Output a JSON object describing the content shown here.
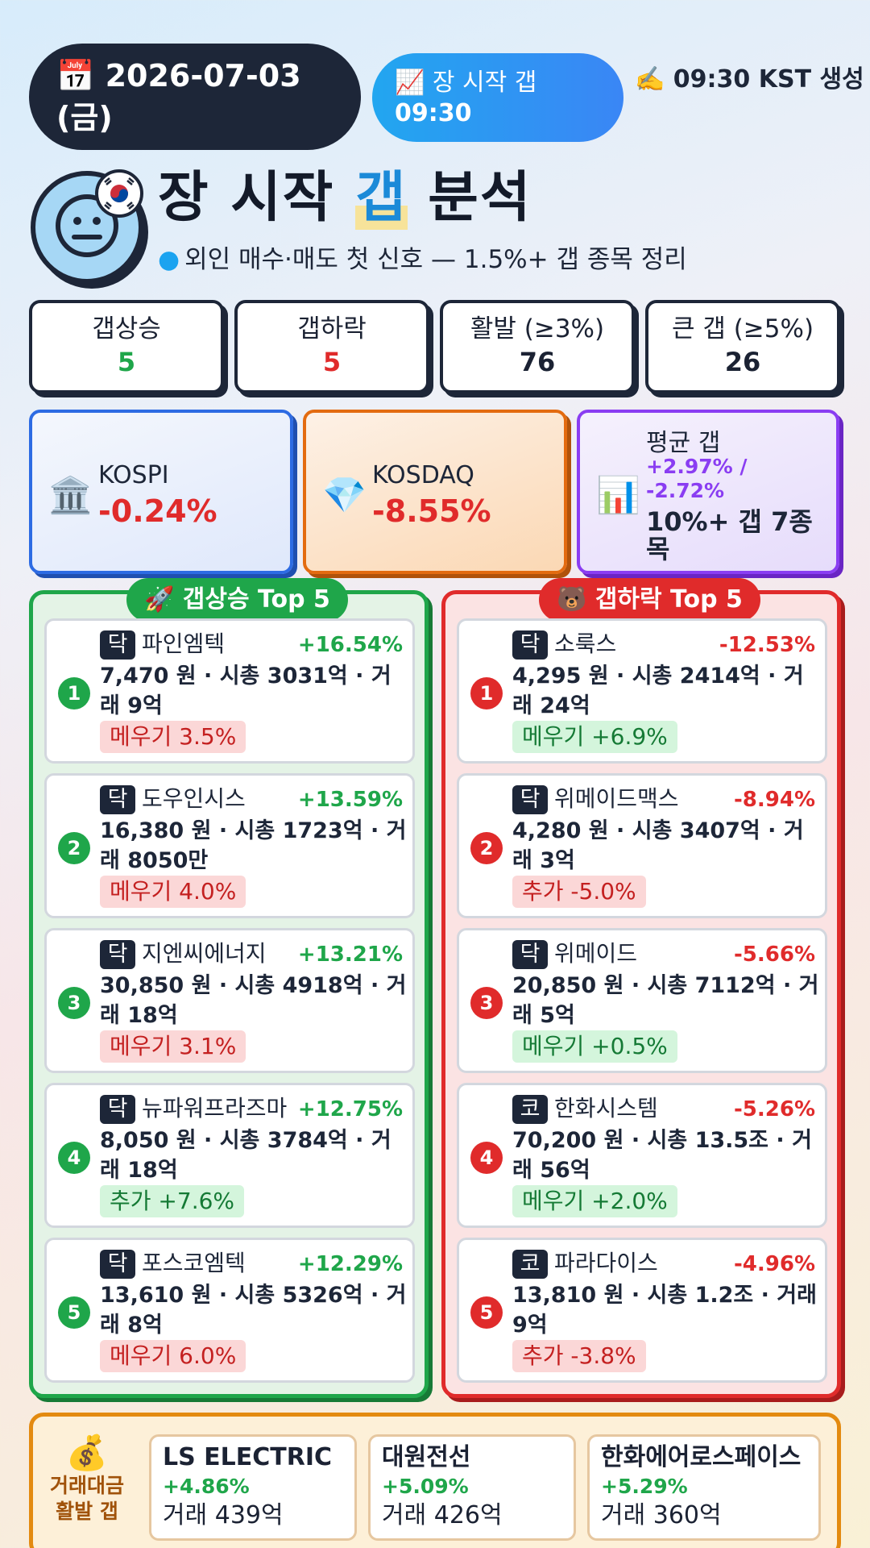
{
  "header": {
    "date_icon": "📅",
    "date": "2026-07-03",
    "weekday": "(금)",
    "session_icon": "📈",
    "session_label": "장 시작 갭",
    "session_time": "09:30",
    "generated_note": "✍️ 09:30 KST 생성"
  },
  "title": {
    "part1": "장 시작 ",
    "highlight": "갭",
    "part2": " 분석",
    "subtitle": "외인 매수·매도 첫 신호 — 1.5%+ 갭 종목 정리",
    "avatar_icon": "neutral-face-icon",
    "flag_icon": "korea-flag-icon"
  },
  "stats": [
    {
      "label": "갭상승",
      "value": "5",
      "color": "#1fa64a"
    },
    {
      "label": "갭하락",
      "value": "5",
      "color": "#e02b2b"
    },
    {
      "label": "활발 (≥3%)",
      "value": "76",
      "color": "#1d2638"
    },
    {
      "label": "큰 갭 (≥5%)",
      "value": "26",
      "color": "#1d2638"
    }
  ],
  "indices": {
    "kospi": {
      "icon": "🏛️",
      "name": "KOSPI",
      "value": "-0.24%"
    },
    "kosdaq": {
      "icon": "💎",
      "name": "KOSDAQ",
      "value": "-8.55%"
    },
    "average": {
      "icon": "📊",
      "label": "평균 갭",
      "sub": "+2.97% / -2.72%",
      "big": "10%+ 갭 7종목"
    }
  },
  "gap_up": {
    "title": "🚀 갭상승 Top 5",
    "items": [
      {
        "rank": "1",
        "market": "닥",
        "name": "파인엠텍",
        "pct": "+16.54%",
        "meta": "7,470 원 · 시총 3031억 · 거래 9억",
        "tag": "메우기 3.5%",
        "tag_type": "red"
      },
      {
        "rank": "2",
        "market": "닥",
        "name": "도우인시스",
        "pct": "+13.59%",
        "meta": "16,380 원 · 시총 1723억 · 거래 8050만",
        "tag": "메우기 4.0%",
        "tag_type": "red"
      },
      {
        "rank": "3",
        "market": "닥",
        "name": "지엔씨에너지",
        "pct": "+13.21%",
        "meta": "30,850 원 · 시총 4918억 · 거래 18억",
        "tag": "메우기 3.1%",
        "tag_type": "red"
      },
      {
        "rank": "4",
        "market": "닥",
        "name": "뉴파워프라즈마",
        "pct": "+12.75%",
        "meta": "8,050 원 · 시총 3784억 · 거래 18억",
        "tag": "추가 +7.6%",
        "tag_type": "green"
      },
      {
        "rank": "5",
        "market": "닥",
        "name": "포스코엠텍",
        "pct": "+12.29%",
        "meta": "13,610 원 · 시총 5326억 · 거래 8억",
        "tag": "메우기 6.0%",
        "tag_type": "red"
      }
    ]
  },
  "gap_down": {
    "title": "🐻 갭하락 Top 5",
    "items": [
      {
        "rank": "1",
        "market": "닥",
        "name": "소룩스",
        "pct": "-12.53%",
        "meta": "4,295 원 · 시총 2414억 · 거래 24억",
        "tag": "메우기 +6.9%",
        "tag_type": "green"
      },
      {
        "rank": "2",
        "market": "닥",
        "name": "위메이드맥스",
        "pct": "-8.94%",
        "meta": "4,280 원 · 시총 3407억 · 거래 3억",
        "tag": "추가 -5.0%",
        "tag_type": "red"
      },
      {
        "rank": "3",
        "market": "닥",
        "name": "위메이드",
        "pct": "-5.66%",
        "meta": "20,850 원 · 시총 7112억 · 거래 5억",
        "tag": "메우기 +0.5%",
        "tag_type": "green"
      },
      {
        "rank": "4",
        "market": "코",
        "name": "한화시스템",
        "pct": "-5.26%",
        "meta": "70,200 원 · 시총 13.5조 · 거래 56억",
        "tag": "메우기 +2.0%",
        "tag_type": "green"
      },
      {
        "rank": "5",
        "market": "코",
        "name": "파라다이스",
        "pct": "-4.96%",
        "meta": "13,810 원 · 시총 1.2조 · 거래 9억",
        "tag": "추가 -3.8%",
        "tag_type": "red"
      }
    ]
  },
  "volume": {
    "icon": "💰",
    "label": "거래대금 활발 갭",
    "items": [
      {
        "name": "LS ELECTRIC",
        "pct": "+4.86%",
        "vol": "거래 439억"
      },
      {
        "name": "대원전선",
        "pct": "+5.09%",
        "vol": "거래 426억"
      },
      {
        "name": "한화에어로스페이스",
        "pct": "+5.29%",
        "vol": "거래 360억"
      }
    ]
  }
}
